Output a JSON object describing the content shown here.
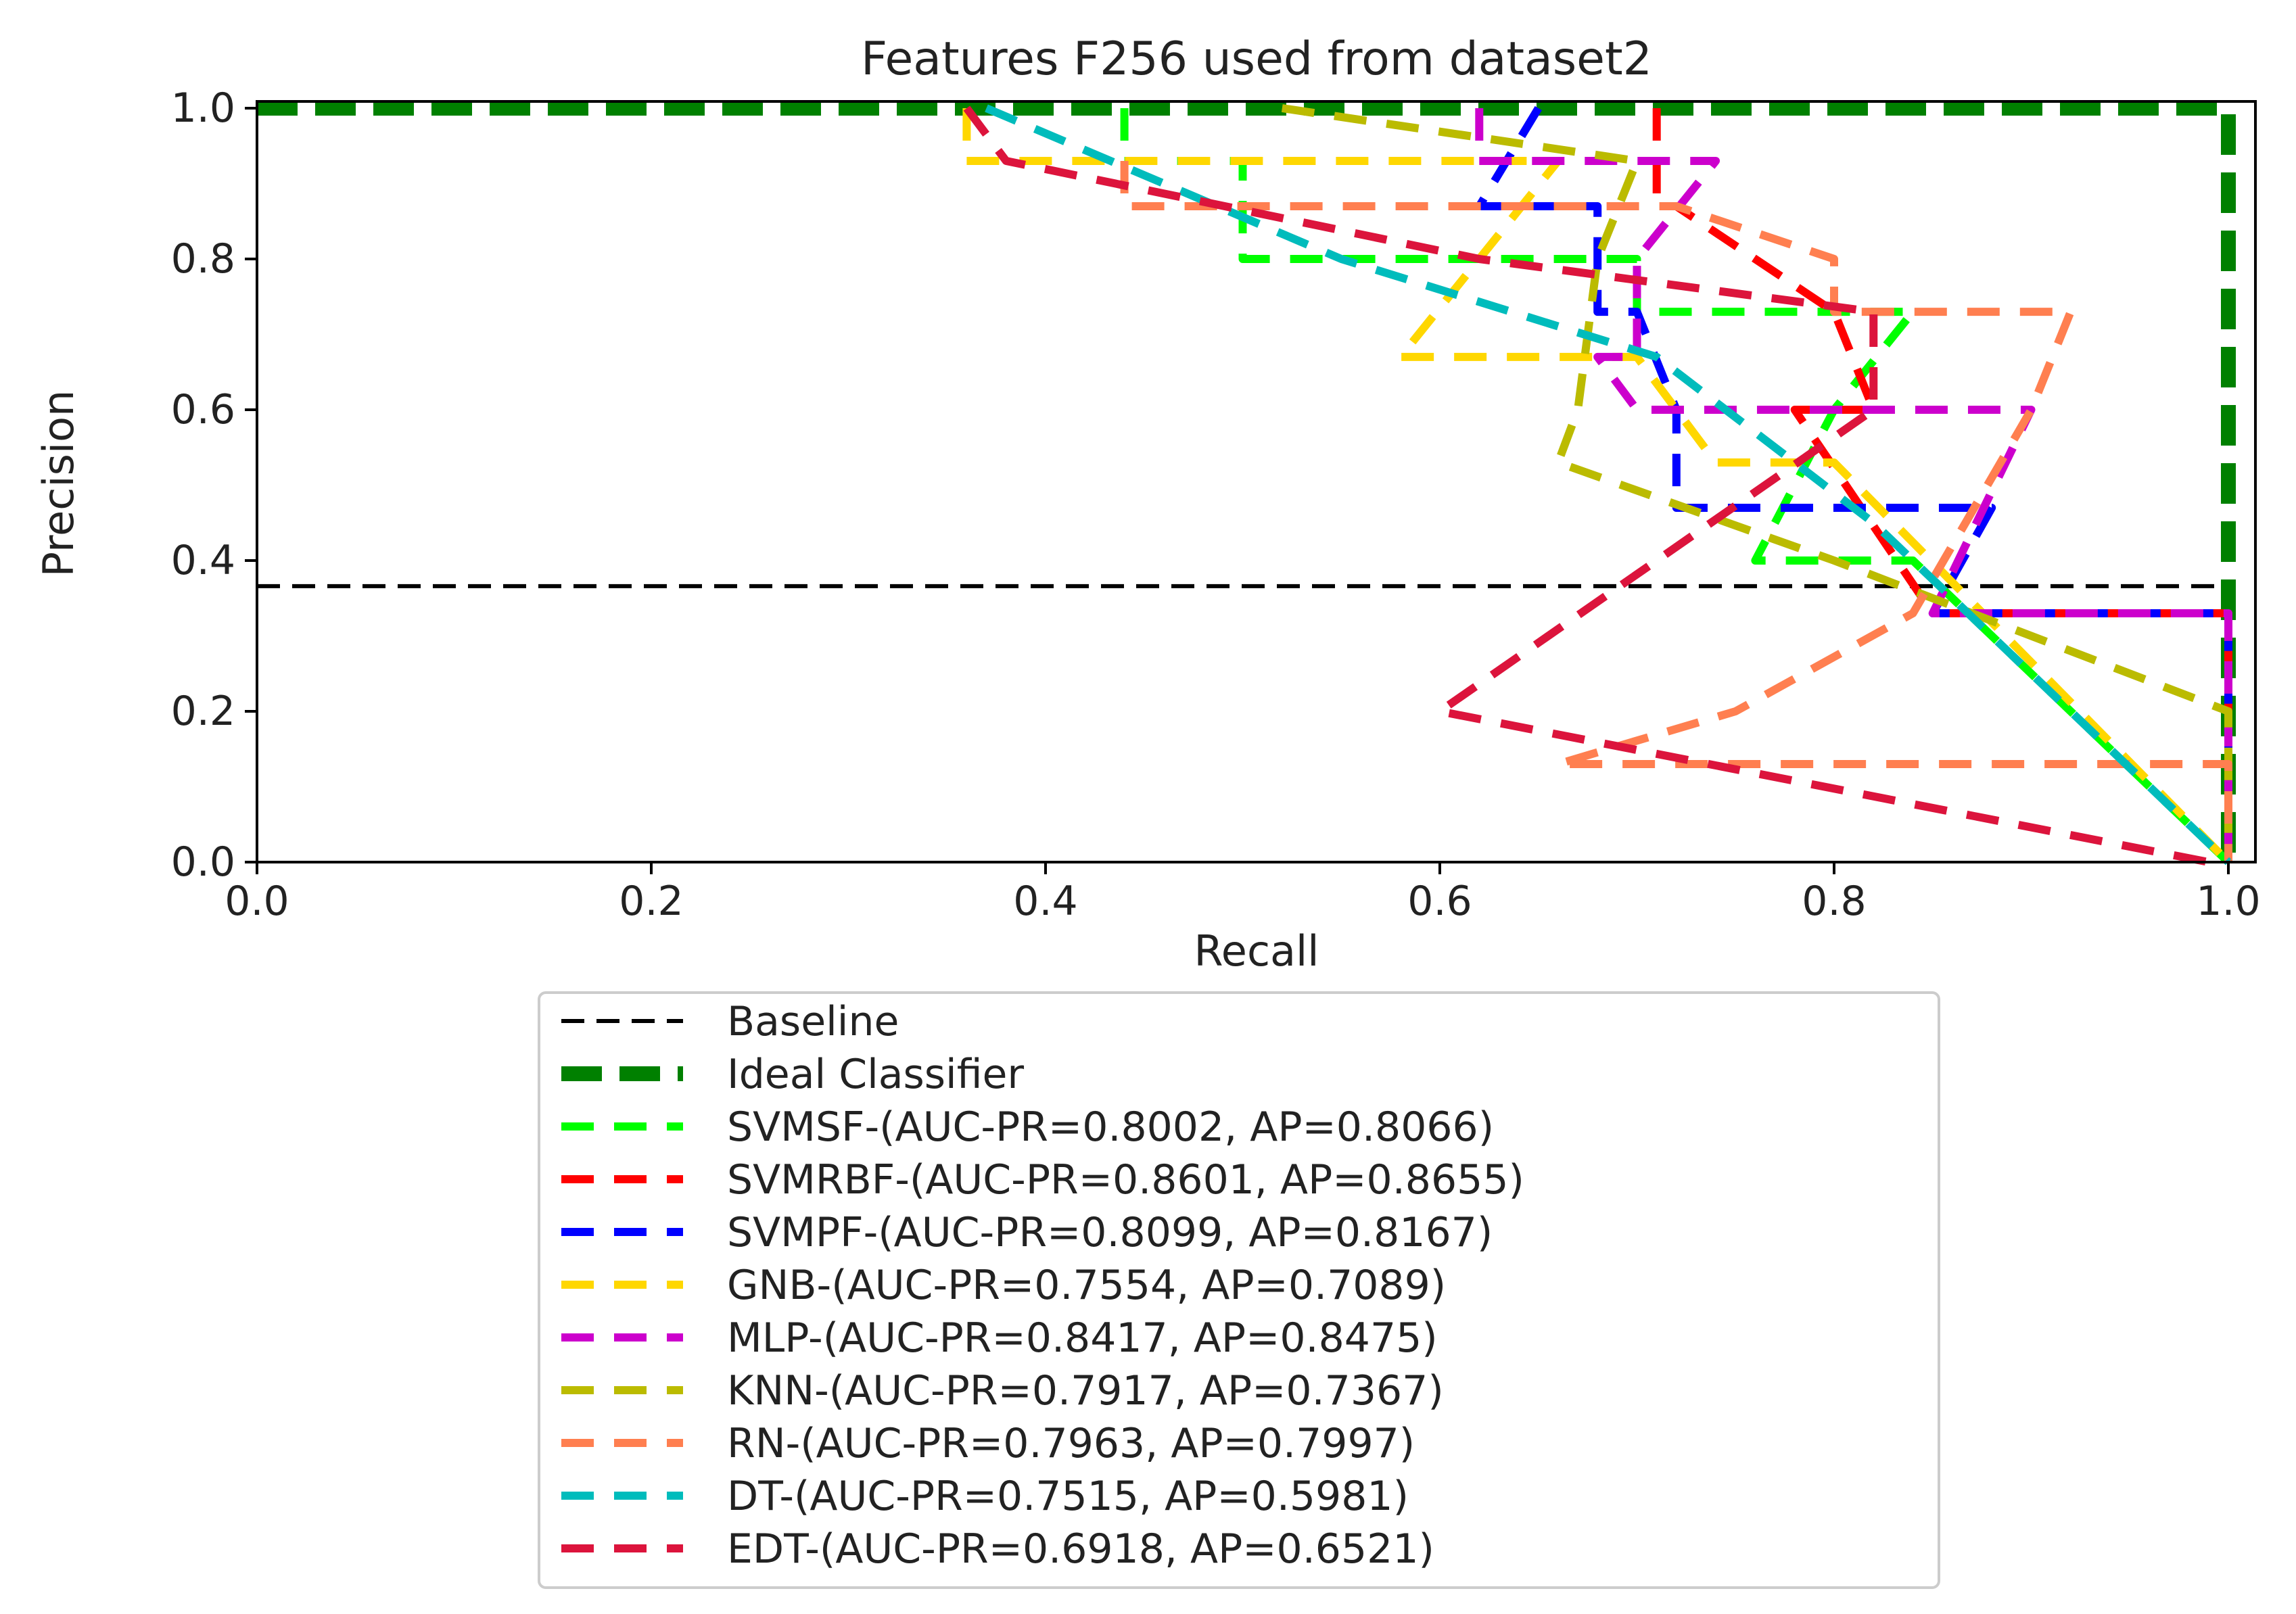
{
  "chart_data": {
    "type": "line",
    "title": "Features F256 used from dataset2",
    "xlabel": "Recall",
    "ylabel": "Precision",
    "xlim": [
      0.0,
      1.0
    ],
    "ylim": [
      0.0,
      1.0
    ],
    "xticks": [
      "0.0",
      "0.2",
      "0.4",
      "0.6",
      "0.8",
      "1.0"
    ],
    "yticks": [
      "0.0",
      "0.2",
      "0.4",
      "0.6",
      "0.8",
      "1.0"
    ],
    "grid": false,
    "legend_position": "below",
    "series": [
      {
        "name": "Baseline",
        "color": "#000000",
        "style": "baseline",
        "points": [
          [
            0.0,
            0.366
          ],
          [
            1.0,
            0.366
          ]
        ]
      },
      {
        "name": "Ideal Classifier",
        "color": "#008000",
        "style": "ideal",
        "points": [
          [
            0.0,
            1.0
          ],
          [
            1.0,
            1.0
          ],
          [
            1.0,
            0.0
          ]
        ]
      },
      {
        "name": "SVMSF-(AUC-PR=0.8002, AP=0.8066)",
        "color": "#00ff00",
        "points": [
          [
            0.44,
            1.0
          ],
          [
            0.44,
            0.93
          ],
          [
            0.5,
            0.93
          ],
          [
            0.5,
            0.8
          ],
          [
            0.7,
            0.8
          ],
          [
            0.7,
            0.73
          ],
          [
            0.84,
            0.73
          ],
          [
            0.8,
            0.6
          ],
          [
            0.76,
            0.4
          ],
          [
            0.84,
            0.4
          ],
          [
            1.0,
            0.0
          ]
        ]
      },
      {
        "name": "SVMRBF-(AUC-PR=0.8601, AP=0.8655)",
        "color": "#ff0000",
        "points": [
          [
            0.71,
            1.0
          ],
          [
            0.71,
            0.87
          ],
          [
            0.72,
            0.87
          ],
          [
            0.8,
            0.73
          ],
          [
            0.82,
            0.6
          ],
          [
            0.78,
            0.6
          ],
          [
            0.85,
            0.33
          ],
          [
            1.0,
            0.33
          ],
          [
            1.0,
            0.0
          ]
        ]
      },
      {
        "name": "SVMPF-(AUC-PR=0.8099, AP=0.8167)",
        "color": "#0000ff",
        "points": [
          [
            0.65,
            1.0
          ],
          [
            0.62,
            0.87
          ],
          [
            0.68,
            0.87
          ],
          [
            0.68,
            0.73
          ],
          [
            0.7,
            0.73
          ],
          [
            0.72,
            0.6
          ],
          [
            0.72,
            0.47
          ],
          [
            0.88,
            0.47
          ],
          [
            0.85,
            0.33
          ],
          [
            1.0,
            0.33
          ],
          [
            1.0,
            0.0
          ]
        ]
      },
      {
        "name": "GNB-(AUC-PR=0.7554, AP=0.7089)",
        "color": "#ffd700",
        "points": [
          [
            0.36,
            1.0
          ],
          [
            0.36,
            0.93
          ],
          [
            0.66,
            0.93
          ],
          [
            0.58,
            0.67
          ],
          [
            0.7,
            0.67
          ],
          [
            0.74,
            0.53
          ],
          [
            0.8,
            0.53
          ],
          [
            1.0,
            0.0
          ]
        ]
      },
      {
        "name": "MLP-(AUC-PR=0.8417, AP=0.8475)",
        "color": "#cc00cc",
        "points": [
          [
            0.62,
            1.0
          ],
          [
            0.62,
            0.93
          ],
          [
            0.74,
            0.93
          ],
          [
            0.7,
            0.8
          ],
          [
            0.7,
            0.67
          ],
          [
            0.68,
            0.67
          ],
          [
            0.7,
            0.6
          ],
          [
            0.9,
            0.6
          ],
          [
            0.85,
            0.33
          ],
          [
            1.0,
            0.33
          ],
          [
            1.0,
            0.0
          ]
        ]
      },
      {
        "name": "KNN-(AUC-PR=0.7917, AP=0.7367)",
        "color": "#bbbb00",
        "points": [
          [
            0.52,
            1.0
          ],
          [
            0.7,
            0.93
          ],
          [
            0.68,
            0.8
          ],
          [
            0.67,
            0.6
          ],
          [
            0.66,
            0.53
          ],
          [
            0.8,
            0.4
          ],
          [
            1.0,
            0.2
          ],
          [
            1.0,
            0.0
          ]
        ]
      },
      {
        "name": "RN-(AUC-PR=0.7963, AP=0.7997)",
        "color": "#ff7f50",
        "points": [
          [
            0.44,
            0.93
          ],
          [
            0.44,
            0.87
          ],
          [
            0.72,
            0.87
          ],
          [
            0.8,
            0.8
          ],
          [
            0.8,
            0.73
          ],
          [
            0.92,
            0.73
          ],
          [
            0.9,
            0.6
          ],
          [
            0.84,
            0.33
          ],
          [
            0.75,
            0.2
          ],
          [
            0.66,
            0.13
          ],
          [
            1.0,
            0.13
          ],
          [
            1.0,
            0.0
          ]
        ]
      },
      {
        "name": "DT-(AUC-PR=0.7515, AP=0.5981)",
        "color": "#00bcbc",
        "points": [
          [
            0.37,
            1.0
          ],
          [
            0.55,
            0.8
          ],
          [
            0.71,
            0.67
          ],
          [
            0.82,
            0.45
          ],
          [
            1.0,
            0.0
          ]
        ]
      },
      {
        "name": "EDT-(AUC-PR=0.6918, AP=0.6521)",
        "color": "#dc143c",
        "points": [
          [
            0.36,
            1.0
          ],
          [
            0.38,
            0.93
          ],
          [
            0.62,
            0.8
          ],
          [
            0.82,
            0.73
          ],
          [
            0.82,
            0.6
          ],
          [
            0.6,
            0.2
          ],
          [
            0.99,
            0.0
          ]
        ]
      }
    ]
  }
}
